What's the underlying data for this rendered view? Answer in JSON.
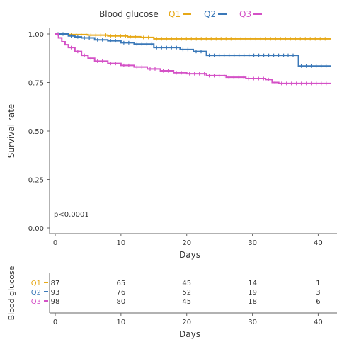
{
  "chart_data": {
    "type": "line",
    "subtype": "kaplan-meier survival curve with risk table",
    "legend": {
      "title": "Blood glucose",
      "placement": "top",
      "entries": [
        "Q1",
        "Q2",
        "Q3"
      ]
    },
    "xlabel": "Days",
    "ylabel": "Survival rate",
    "xlim": [
      0,
      42
    ],
    "ylim": [
      0,
      1
    ],
    "x_ticks": [
      "0",
      "10",
      "20",
      "30",
      "40"
    ],
    "y_ticks": [
      "0.00",
      "0.25",
      "0.50",
      "0.75",
      "1.00"
    ],
    "x_tick_values": [
      0,
      10,
      20,
      30,
      40
    ],
    "y_tick_values": [
      0,
      0.25,
      0.5,
      0.75,
      1.0
    ],
    "grid": false,
    "annotation": "p<0.0001",
    "series": [
      {
        "name": "Q1",
        "color": "#e6a817",
        "x": [
          0,
          2,
          5,
          8,
          11,
          13,
          15,
          42
        ],
        "y": [
          1.0,
          0.997,
          0.994,
          0.99,
          0.986,
          0.982,
          0.975,
          0.975
        ]
      },
      {
        "name": "Q2",
        "color": "#3a78b8",
        "x": [
          0,
          2,
          3,
          4,
          6,
          8,
          10,
          12,
          15,
          19,
          21,
          23,
          35,
          37,
          42
        ],
        "y": [
          1.0,
          0.99,
          0.985,
          0.98,
          0.97,
          0.965,
          0.955,
          0.948,
          0.93,
          0.92,
          0.91,
          0.89,
          0.89,
          0.835,
          0.835
        ]
      },
      {
        "name": "Q3",
        "color": "#d451c6",
        "x": [
          0,
          0.5,
          1,
          1.5,
          2,
          3,
          4,
          5,
          6,
          8,
          10,
          12,
          14,
          16,
          18,
          20,
          23,
          26,
          29,
          32,
          33,
          34,
          42
        ],
        "y": [
          1.0,
          0.98,
          0.96,
          0.945,
          0.93,
          0.91,
          0.89,
          0.875,
          0.86,
          0.848,
          0.838,
          0.83,
          0.82,
          0.81,
          0.8,
          0.795,
          0.785,
          0.777,
          0.77,
          0.765,
          0.75,
          0.745,
          0.745
        ]
      }
    ],
    "risk_table": {
      "ylabel": "Blood glucose",
      "xlabel": "Days",
      "x_ticks": [
        "0",
        "10",
        "20",
        "30",
        "40"
      ],
      "rows": [
        {
          "group": "Q1",
          "counts": [
            "87",
            "65",
            "45",
            "14",
            "1"
          ]
        },
        {
          "group": "Q2",
          "counts": [
            "93",
            "76",
            "52",
            "19",
            "3"
          ]
        },
        {
          "group": "Q3",
          "counts": [
            "98",
            "80",
            "45",
            "18",
            "6"
          ]
        }
      ]
    }
  }
}
